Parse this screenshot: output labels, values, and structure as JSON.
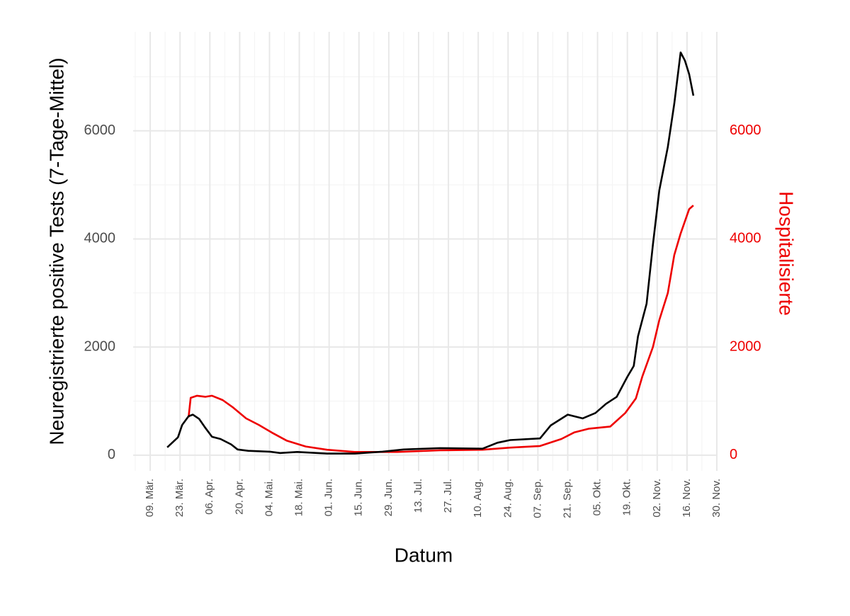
{
  "chart_data": {
    "type": "line",
    "x_label": "Datum",
    "y_label": "Neuregistrierte positive Tests (7-Tage-Mittel)",
    "y2_label": "Hospitalisierte",
    "xlim": [
      "03-01",
      "11-30"
    ],
    "xticks": [
      {
        "value": "03-09",
        "label": "09. Mär."
      },
      {
        "value": "03-23",
        "label": "23. Mär."
      },
      {
        "value": "04-06",
        "label": "06. Apr."
      },
      {
        "value": "04-20",
        "label": "20. Apr."
      },
      {
        "value": "05-04",
        "label": "04. Mai."
      },
      {
        "value": "05-18",
        "label": "18. Mai."
      },
      {
        "value": "06-01",
        "label": "01. Jun."
      },
      {
        "value": "06-15",
        "label": "15. Jun."
      },
      {
        "value": "06-29",
        "label": "29. Jun."
      },
      {
        "value": "07-13",
        "label": "13. Jul."
      },
      {
        "value": "07-27",
        "label": "27. Jul."
      },
      {
        "value": "08-10",
        "label": "10. Aug."
      },
      {
        "value": "08-24",
        "label": "24. Aug."
      },
      {
        "value": "09-07",
        "label": "07. Sep."
      },
      {
        "value": "09-21",
        "label": "21. Sep."
      },
      {
        "value": "10-05",
        "label": "05. Okt."
      },
      {
        "value": "10-19",
        "label": "19. Okt."
      },
      {
        "value": "11-02",
        "label": "02. Nov."
      },
      {
        "value": "11-16",
        "label": "16. Nov."
      },
      {
        "value": "11-30",
        "label": "30. Nov."
      }
    ],
    "xminorticks": [
      "03-02",
      "03-16",
      "03-30",
      "04-13",
      "04-27",
      "05-11",
      "05-25",
      "06-08",
      "06-22",
      "07-06",
      "07-20",
      "08-03",
      "08-17",
      "08-31",
      "09-14",
      "09-28",
      "10-12",
      "10-26",
      "11-09",
      "11-23"
    ],
    "ylim": [
      -290,
      7830
    ],
    "yticks": [
      0,
      2000,
      4000,
      6000
    ],
    "yminorticks": [
      1000,
      3000,
      5000,
      7000
    ],
    "y2lim": [
      -290,
      7830
    ],
    "y2ticks": [
      0,
      2000,
      4000,
      6000
    ],
    "grid": true,
    "series": [
      {
        "name": "Neuregistrierte positive Tests",
        "color": "#000000",
        "x": [
          "03-17",
          "03-22",
          "03-24",
          "03-27",
          "03-29",
          "04-01",
          "04-04",
          "04-07",
          "04-11",
          "04-16",
          "04-19",
          "04-24",
          "05-04",
          "05-09",
          "05-17",
          "05-31",
          "06-13",
          "06-26",
          "07-06",
          "07-23",
          "08-12",
          "08-19",
          "08-25",
          "09-08",
          "09-13",
          "09-21",
          "09-28",
          "10-04",
          "10-09",
          "10-14",
          "10-19",
          "10-22",
          "10-24",
          "10-28",
          "10-31",
          "11-03",
          "11-07",
          "11-10",
          "11-13",
          "11-15",
          "11-17",
          "11-19"
        ],
        "values": [
          145,
          330,
          560,
          720,
          750,
          670,
          500,
          340,
          300,
          200,
          105,
          80,
          65,
          40,
          60,
          30,
          30,
          65,
          105,
          130,
          120,
          230,
          280,
          310,
          550,
          750,
          680,
          780,
          950,
          1080,
          1450,
          1650,
          2200,
          2800,
          3900,
          4900,
          5700,
          6500,
          7450,
          7300,
          7050,
          6650
        ]
      },
      {
        "name": "Hospitalisierte",
        "color": "#ee0000",
        "axis": "y2",
        "x": [
          "03-27",
          "03-28",
          "03-31",
          "04-04",
          "04-07",
          "04-12",
          "04-17",
          "04-23",
          "04-29",
          "05-05",
          "05-12",
          "05-21",
          "05-31",
          "06-13",
          "07-03",
          "07-23",
          "08-12",
          "08-25",
          "09-08",
          "09-18",
          "09-24",
          "10-01",
          "10-11",
          "10-18",
          "10-23",
          "10-26",
          "10-31",
          "11-03",
          "11-07",
          "11-10",
          "11-13",
          "11-17",
          "11-19"
        ],
        "values": [
          700,
          1060,
          1100,
          1080,
          1100,
          1020,
          880,
          680,
          560,
          420,
          270,
          160,
          100,
          60,
          60,
          90,
          100,
          140,
          170,
          300,
          420,
          490,
          530,
          780,
          1050,
          1450,
          2000,
          2500,
          3000,
          3700,
          4100,
          4550,
          4620
        ]
      }
    ]
  }
}
